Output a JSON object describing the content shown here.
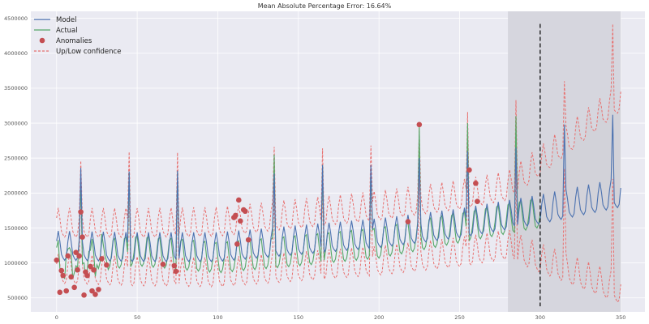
{
  "chart_data": {
    "type": "line",
    "title": "Mean Absolute Percentage Error: 16.64%",
    "xlabel": "",
    "ylabel": "",
    "xlim": [
      -16,
      365
    ],
    "ylim": [
      300000,
      4600000
    ],
    "xticks": [
      0,
      50,
      100,
      150,
      200,
      250,
      300,
      350
    ],
    "yticks": [
      500000,
      1000000,
      1500000,
      2000000,
      2500000,
      3000000,
      3500000,
      4000000,
      4500000
    ],
    "xtick_labels": [
      "0",
      "50",
      "100",
      "150",
      "200",
      "250",
      "300",
      "350"
    ],
    "ytick_labels": [
      "500000",
      "1000000",
      "1500000",
      "2000000",
      "2500000",
      "3000000",
      "3500000",
      "4000000",
      "4500000"
    ],
    "grid": true,
    "legend_position": "top-left",
    "legend": [
      {
        "label": "Model",
        "kind": "line",
        "color": "#4c72b0"
      },
      {
        "label": "Actual",
        "kind": "line",
        "color": "#55a868"
      },
      {
        "label": "Anomalies",
        "kind": "marker",
        "color": "#c44e52"
      },
      {
        "label": "Up/Low confidence",
        "kind": "dashed",
        "color": "#e8706f"
      }
    ],
    "shaded_region_x": [
      280,
      350
    ],
    "vertical_line_x": 300,
    "actual_end_x": 300,
    "model_end_x": 350,
    "spike_period": 30,
    "first_spike_x": 15,
    "series": [
      {
        "name": "Model",
        "note": "trend",
        "x": [
          0,
          50,
          100,
          150,
          200,
          250,
          300,
          350
        ],
        "values": [
          1200000,
          1180000,
          1180000,
          1280000,
          1380000,
          1520000,
          1720000,
          1960000
        ]
      },
      {
        "name": "Actual",
        "note": "trend",
        "x": [
          0,
          50,
          100,
          150,
          200,
          250,
          300
        ],
        "values": [
          1000000,
          1150000,
          1050000,
          1150000,
          1260000,
          1480000,
          1700000
        ]
      },
      {
        "name": "Up/Low confidence",
        "note": "band half-width around model",
        "x": [
          0,
          280,
          350
        ],
        "values": [
          330000,
          420000,
          1380000
        ]
      }
    ],
    "spikes": [
      {
        "x": 15,
        "model": 2360000,
        "actual": 2180000,
        "upper": 2460000
      },
      {
        "x": 45,
        "model": 2310000,
        "actual": 2290000,
        "upper": 2590000
      },
      {
        "x": 75,
        "model": 2320000,
        "actual": 2300000,
        "upper": 2580000
      },
      {
        "x": 135,
        "model": 2280000,
        "actual": 2550000,
        "upper": 2660000
      },
      {
        "x": 165,
        "model": 2400000,
        "actual": 2400000,
        "upper": 2640000
      },
      {
        "x": 195,
        "model": 2400000,
        "actual": 2350000,
        "upper": 2680000
      },
      {
        "x": 225,
        "model": 2500000,
        "actual": 2950000,
        "upper": 2930000
      },
      {
        "x": 255,
        "model": 2600000,
        "actual": 3000000,
        "upper": 3160000
      },
      {
        "x": 285,
        "model": 2650000,
        "actual": 3100000,
        "upper": 3330000
      },
      {
        "x": 315,
        "model": 2980000,
        "actual": null,
        "upper": 3600000
      },
      {
        "x": 345,
        "model": 3120000,
        "actual": null,
        "upper": 4420000
      }
    ],
    "anomalies": {
      "x": [
        0,
        2,
        3,
        4,
        6,
        7,
        9,
        11,
        12,
        13,
        14,
        15,
        16,
        17,
        18,
        19,
        21,
        22,
        23,
        24,
        26,
        28,
        31,
        66,
        73,
        74,
        110,
        111,
        112,
        113,
        114,
        116,
        117,
        119,
        218,
        225,
        256,
        260,
        261
      ],
      "values": [
        1040000,
        580000,
        890000,
        820000,
        600000,
        1100000,
        800000,
        650000,
        1150000,
        900000,
        1100000,
        1730000,
        1370000,
        540000,
        870000,
        820000,
        950000,
        600000,
        900000,
        550000,
        620000,
        1060000,
        970000,
        980000,
        960000,
        880000,
        1650000,
        1680000,
        1270000,
        1900000,
        1600000,
        1760000,
        1740000,
        1330000,
        1590000,
        2980000,
        2330000,
        2140000,
        1880000
      ]
    }
  }
}
